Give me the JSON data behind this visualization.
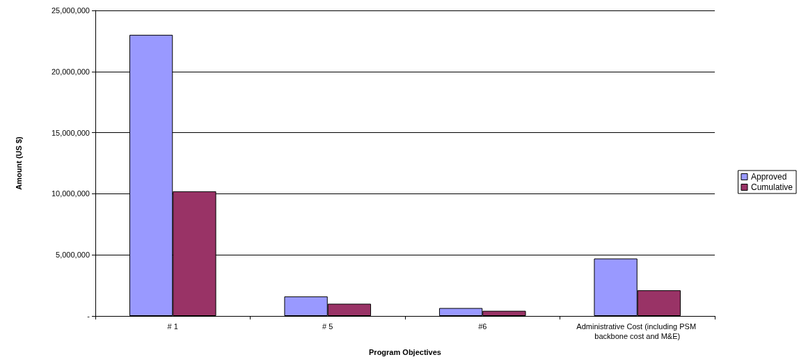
{
  "chart_data": {
    "type": "bar",
    "xlabel": "Program Objectives",
    "ylabel": "Amount (US $)",
    "categories": [
      "# 1",
      "# 5",
      "#6",
      "Administrative Cost (including PSM backbone cost and M&E)"
    ],
    "series": [
      {
        "name": "Approved",
        "color": "#9999ff",
        "values": [
          23000000,
          1600000,
          650000,
          4700000
        ]
      },
      {
        "name": "Cumulative",
        "color": "#993366",
        "values": [
          10200000,
          1000000,
          420000,
          2100000
        ]
      }
    ],
    "ylim": [
      0,
      25000000
    ],
    "yticks": [
      {
        "value": 0,
        "label": "-"
      },
      {
        "value": 5000000,
        "label": "5,000,000"
      },
      {
        "value": 10000000,
        "label": "10,000,000"
      },
      {
        "value": 15000000,
        "label": "15,000,000"
      },
      {
        "value": 20000000,
        "label": "20,000,000"
      },
      {
        "value": 25000000,
        "label": "25,000,000"
      }
    ],
    "grid": "y",
    "legend": "right"
  }
}
